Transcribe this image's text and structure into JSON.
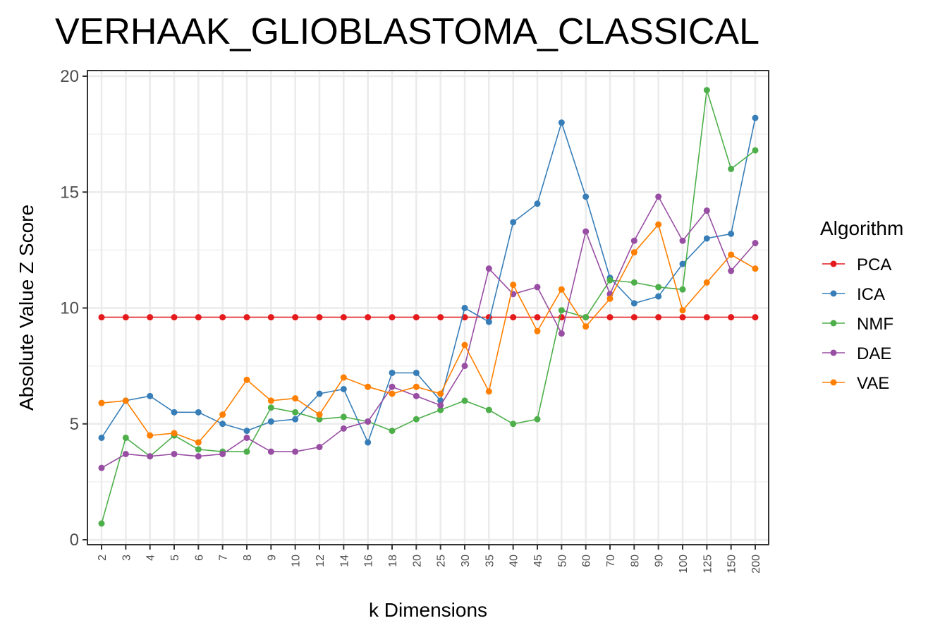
{
  "chart_data": {
    "type": "line",
    "title": "VERHAAK_GLIOBLASTOMA_CLASSICAL",
    "xlabel": "k Dimensions",
    "ylabel": "Absolute Value Z Score",
    "ylim": [
      0,
      20
    ],
    "yticks": [
      "0",
      "5",
      "10",
      "15",
      "20"
    ],
    "grid": true,
    "legend": {
      "title": "Algorithm",
      "position": "right"
    },
    "categories": [
      "2",
      "3",
      "4",
      "5",
      "6",
      "7",
      "8",
      "9",
      "10",
      "12",
      "14",
      "16",
      "18",
      "20",
      "25",
      "30",
      "35",
      "40",
      "45",
      "50",
      "60",
      "70",
      "80",
      "90",
      "100",
      "125",
      "150",
      "200"
    ],
    "series": [
      {
        "name": "PCA",
        "color": "#e41a1c",
        "values": [
          9.6,
          9.6,
          9.6,
          9.6,
          9.6,
          9.6,
          9.6,
          9.6,
          9.6,
          9.6,
          9.6,
          9.6,
          9.6,
          9.6,
          9.6,
          9.6,
          9.6,
          9.6,
          9.6,
          9.6,
          9.6,
          9.6,
          9.6,
          9.6,
          9.6,
          9.6,
          9.6,
          9.6
        ]
      },
      {
        "name": "ICA",
        "color": "#377eb8",
        "values": [
          4.4,
          6.0,
          6.2,
          5.5,
          5.5,
          5.0,
          4.7,
          5.1,
          5.2,
          6.3,
          6.5,
          4.2,
          7.2,
          7.2,
          6.0,
          10.0,
          9.4,
          13.7,
          14.5,
          18.0,
          14.8,
          11.3,
          10.2,
          10.5,
          11.9,
          13.0,
          13.2,
          18.2
        ]
      },
      {
        "name": "NMF",
        "color": "#4daf4a",
        "values": [
          0.7,
          4.4,
          3.6,
          4.5,
          3.9,
          3.8,
          3.8,
          5.7,
          5.5,
          5.2,
          5.3,
          5.1,
          4.7,
          5.2,
          5.6,
          6.0,
          5.6,
          5.0,
          5.2,
          9.9,
          9.6,
          11.2,
          11.1,
          10.9,
          10.8,
          19.4,
          16.0,
          16.8
        ]
      },
      {
        "name": "DAE",
        "color": "#984ea3",
        "values": [
          3.1,
          3.7,
          3.6,
          3.7,
          3.6,
          3.7,
          4.4,
          3.8,
          3.8,
          4.0,
          4.8,
          5.1,
          6.6,
          6.2,
          5.8,
          7.5,
          11.7,
          10.6,
          10.9,
          8.9,
          13.3,
          10.6,
          12.9,
          14.8,
          12.9,
          14.2,
          11.6,
          12.8
        ]
      },
      {
        "name": "VAE",
        "color": "#ff7f00",
        "values": [
          5.9,
          6.0,
          4.5,
          4.6,
          4.2,
          5.4,
          6.9,
          6.0,
          6.1,
          5.4,
          7.0,
          6.6,
          6.3,
          6.6,
          6.3,
          8.4,
          6.4,
          11.0,
          9.0,
          10.8,
          9.2,
          10.4,
          12.4,
          13.6,
          9.9,
          11.1,
          12.3,
          11.7
        ]
      }
    ]
  }
}
